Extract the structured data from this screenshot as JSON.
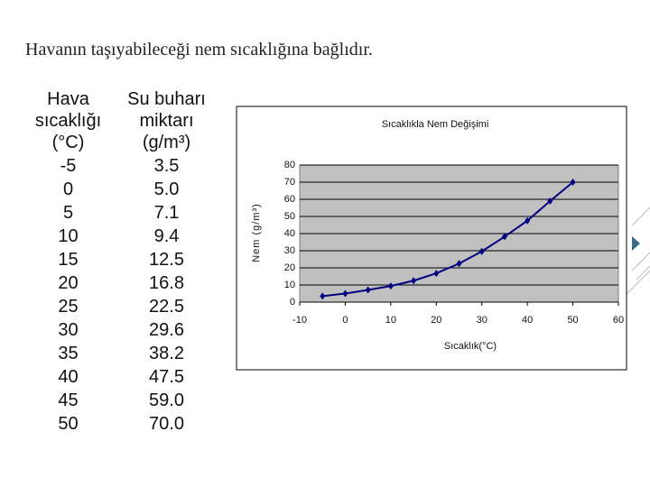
{
  "heading": "Havanın taşıyabileceği nem sıcaklığına bağlıdır.",
  "table": {
    "header": [
      [
        "Hava",
        "sıcaklığı",
        "(°C)"
      ],
      [
        "Su buharı",
        "miktarı",
        "(g/m³)"
      ]
    ],
    "rows": [
      [
        "-5",
        "3.5"
      ],
      [
        "0",
        "5.0"
      ],
      [
        "5",
        "7.1"
      ],
      [
        "10",
        "9.4"
      ],
      [
        "15",
        "12.5"
      ],
      [
        "20",
        "16.8"
      ],
      [
        "25",
        "22.5"
      ],
      [
        "30",
        "29.6"
      ],
      [
        "35",
        "38.2"
      ],
      [
        "40",
        "47.5"
      ],
      [
        "45",
        "59.0"
      ],
      [
        "50",
        "70.0"
      ]
    ]
  },
  "chart_data": {
    "type": "line",
    "title": "Sıcaklıkla Nem Değişimi",
    "x_label": "Sıcaklık(°C)",
    "y_label": "Nem (g/m³)",
    "x": [
      -5,
      0,
      5,
      10,
      15,
      20,
      25,
      30,
      35,
      40,
      45,
      50
    ],
    "series": [
      {
        "color": "#000080",
        "values": [
          3.5,
          5.0,
          7.1,
          9.4,
          12.5,
          16.8,
          22.5,
          29.6,
          38.2,
          47.5,
          59.0,
          70.0
        ]
      }
    ],
    "xlim": [
      -10,
      60
    ],
    "xticks": [
      -10,
      0,
      10,
      20,
      30,
      40,
      50,
      60
    ],
    "ylim": [
      0,
      80
    ],
    "yticks": [
      0,
      10,
      20,
      30,
      40,
      50,
      60,
      70,
      80
    ],
    "grid": true
  }
}
